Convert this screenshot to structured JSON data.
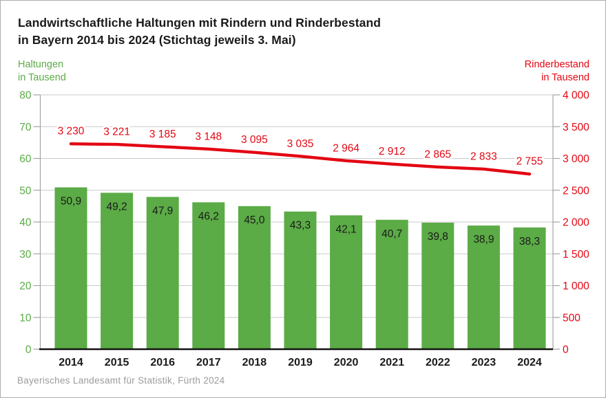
{
  "title": {
    "line1": "Landwirtschaftliche Haltungen mit Rindern und Rinderbestand",
    "line2": "in Bayern 2014 bis 2024 (Stichtag jeweils 3. Mai)"
  },
  "footer": {
    "source": "Bayerisches Landesamt für Statistik, Fürth 2024"
  },
  "chart_data": {
    "type": "bar+line",
    "title": "Landwirtschaftliche Haltungen mit Rindern und Rinderbestand in Bayern 2014 bis 2024 (Stichtag jeweils 3. Mai)",
    "categories": [
      "2014",
      "2015",
      "2016",
      "2017",
      "2018",
      "2019",
      "2020",
      "2021",
      "2022",
      "2023",
      "2024"
    ],
    "series": [
      {
        "name": "Haltungen",
        "type": "bar",
        "axis": "left",
        "color": "#5bab46",
        "values": [
          50.9,
          49.2,
          47.9,
          46.2,
          45.0,
          43.3,
          42.1,
          40.7,
          39.8,
          38.9,
          38.3
        ],
        "labels": [
          "50,9",
          "49,2",
          "47,9",
          "46,2",
          "45,0",
          "43,3",
          "42,1",
          "40,7",
          "39,8",
          "38,9",
          "38,3"
        ],
        "label_color": "#1a1a1a"
      },
      {
        "name": "Rinderbestand",
        "type": "line",
        "axis": "right",
        "color": "#e30613",
        "values": [
          3230,
          3221,
          3185,
          3148,
          3095,
          3035,
          2964,
          2912,
          2865,
          2833,
          2755
        ],
        "labels": [
          "3 230",
          "3 221",
          "3 185",
          "3 148",
          "3 095",
          "3 035",
          "2 964",
          "2 912",
          "2 865",
          "2 833",
          "2 755"
        ],
        "label_color": "#e30613"
      }
    ],
    "left_axis": {
      "title_line1": "Haltungen",
      "title_line2": "in Tausend",
      "color": "#5bab46",
      "min": 0,
      "max": 80,
      "tick_step": 10,
      "tick_labels": [
        "0",
        "10",
        "20",
        "30",
        "40",
        "50",
        "60",
        "70",
        "80"
      ]
    },
    "right_axis": {
      "title_line1": "Rinderbestand",
      "title_line2": "in Tausend",
      "color": "#e30613",
      "min": 0,
      "max": 4000,
      "tick_step": 500,
      "tick_labels": [
        "0",
        "500",
        "1 000",
        "1 500",
        "2 000",
        "2 500",
        "3 000",
        "3 500",
        "4 000"
      ]
    },
    "grid": true,
    "legend": "none",
    "x_tick_color": "#1a1a1a"
  }
}
